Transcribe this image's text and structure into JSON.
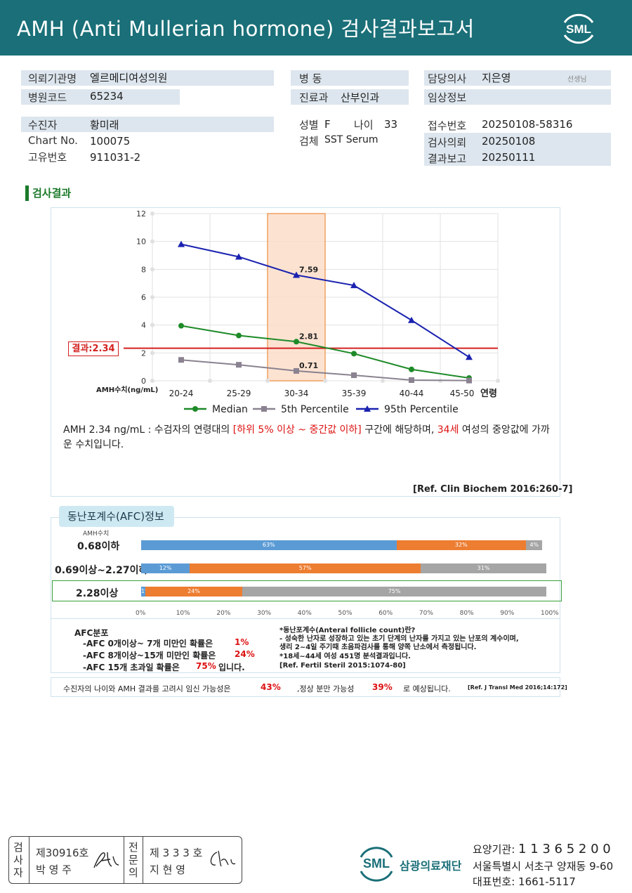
{
  "header": {
    "title": "AMH (Anti Mullerian hormone) 검사결과보고서",
    "logo": "SML"
  },
  "info": {
    "institution_label": "의뢰기관명",
    "institution": "엘르메디여성의원",
    "hospital_code_label": "병원코드",
    "hospital_code": "65234",
    "patient_label": "수진자",
    "patient": "황미래",
    "chart_label": "Chart No.",
    "chart": "100075",
    "id_label": "고유번호",
    "id": "911031-2",
    "ward_label": "병 동",
    "ward": "",
    "dept_label": "진료과",
    "dept": "산부인과",
    "sex_label": "성별",
    "sex": "F",
    "age_label": "나이",
    "age": "33",
    "specimen_label": "검체",
    "specimen": "SST Serum",
    "doctor_label": "담당의사",
    "doctor": "지은영",
    "doctor_suffix": "선생님",
    "clinical_label": "임상정보",
    "clinical": "",
    "receipt_label": "접수번호",
    "receipt": "20250108-58316",
    "requested_label": "검사의뢰",
    "requested": "20250108",
    "reported_label": "결과보고",
    "reported": "20250111"
  },
  "section_title": "검사결과",
  "result_label": "결과:2.34",
  "chart_data": {
    "type": "line",
    "categories": [
      "20-24",
      "25-29",
      "30-34",
      "35-39",
      "40-44",
      "45-50"
    ],
    "x_suffix_label": "연령",
    "ylabel": "AMH수치(ng/mL)",
    "ylim": [
      0,
      12
    ],
    "yticks": [
      0,
      2,
      4,
      6,
      8,
      10,
      12
    ],
    "highlight_category": "30-34",
    "result_value": 2.34,
    "grid": true,
    "legend_position": "bottom",
    "series": [
      {
        "name": "Median",
        "color": "#1e8a28",
        "marker": "circle",
        "values": [
          3.95,
          3.25,
          2.81,
          1.95,
          0.82,
          0.2
        ]
      },
      {
        "name": "5th Percentile",
        "color": "#8a8290",
        "marker": "square",
        "values": [
          1.5,
          1.15,
          0.71,
          0.4,
          0.05,
          0.02
        ]
      },
      {
        "name": "95th Percentile",
        "color": "#1a22b0",
        "marker": "triangle",
        "values": [
          9.8,
          8.9,
          7.59,
          6.85,
          4.35,
          1.7
        ]
      }
    ],
    "annotations": [
      {
        "series": "95th Percentile",
        "category": "30-34",
        "text": "7.59"
      },
      {
        "series": "Median",
        "category": "30-34",
        "text": "2.81"
      },
      {
        "series": "5th Percentile",
        "category": "30-34",
        "text": "0.71"
      }
    ]
  },
  "description": {
    "p1": "AMH  2.34 ng/mL : 수검자의 연령대의 ",
    "p2": "[하위 5% 이상 ~ 중간값 이하]",
    "p3": " 구간에 해당하며, ",
    "p4": "34세",
    "p5": " 여성의 중앙값에 가까운 수치입니다.",
    "ref": "[Ref. Clin Biochem 2016:260-7]"
  },
  "afc": {
    "title": "동난포계수(AFC)정보",
    "axis_caption": "AMH수치",
    "rows": [
      {
        "label": "0.68이하",
        "segments": [
          {
            "value": 63,
            "text": "63%",
            "color": "#5b9bd5"
          },
          {
            "value": 32,
            "text": "32%",
            "color": "#ed7d31"
          },
          {
            "value": 4,
            "text": "4%",
            "color": "#a5a5a5"
          }
        ]
      },
      {
        "label": "0.69이상~2.27이하",
        "segments": [
          {
            "value": 12,
            "text": "12%",
            "color": "#5b9bd5"
          },
          {
            "value": 57,
            "text": "57%",
            "color": "#ed7d31"
          },
          {
            "value": 31,
            "text": "31%",
            "color": "#a5a5a5"
          }
        ]
      },
      {
        "label": "2.28이상",
        "segments": [
          {
            "value": 1,
            "text": "1%",
            "color": "#5b9bd5"
          },
          {
            "value": 24,
            "text": "24%",
            "color": "#ed7d31"
          },
          {
            "value": 75,
            "text": "75%",
            "color": "#a5a5a5"
          }
        ]
      }
    ],
    "highlight_row": 2,
    "x_ticks": [
      "0%",
      "10%",
      "20%",
      "30%",
      "40%",
      "50%",
      "60%",
      "70%",
      "80%",
      "90%",
      "100%"
    ],
    "dist_title": "AFC분포",
    "dist_lines": [
      {
        "text": "-AFC  0개이상~ 7개 미만인 확률은",
        "value": "1%",
        "suffix": ""
      },
      {
        "text": "-AFC  8개이상~15개 미만인 확률은",
        "value": "24%",
        "suffix": ""
      },
      {
        "text": "-AFC  15개 초과일 확률은",
        "value": "75%",
        "suffix": "입니다."
      }
    ],
    "notes": [
      "*동난포계수(Anteral follicle count)란?",
      "- 성숙한 난자로 성장하고 있는 초기 단계의 난자를 가지고 있는 난포의 계수이며,",
      "  생리 2~4일 주기때 초음파검사를 통해 양쪽 난소에서 측정됩니다.",
      "*18세~44세 여성 451명 분석결과입니다.",
      "[Ref. Fertil Steril 2015:1074-80]"
    ]
  },
  "pregnancy": {
    "t1": "수진자의  나이와 AMH 결과를 고려시 임신 가능성은",
    "v1": "43%",
    "t2": ",정상 분만 가능성",
    "v2": "39%",
    "t3": "로 예상됩니다.",
    "ref": "[Ref. J Transl Med 2016;14:172]"
  },
  "stamp": {
    "c1": "검\n사\n자",
    "n1": "제30916호",
    "name1": "박  영  주",
    "c2": "전\n문\n의",
    "n2": "제 3 3 3 호",
    "name2": "지  현  영"
  },
  "footer": {
    "org": "삼광의료재단",
    "logo": "SML",
    "code_label": "요양기관: ",
    "code": "1 1 3 6 5 2 0 0",
    "address": "서울특별시 서초구 양재동 9-60",
    "phone_label": "대표번호: ",
    "phone": "1661-5117"
  }
}
